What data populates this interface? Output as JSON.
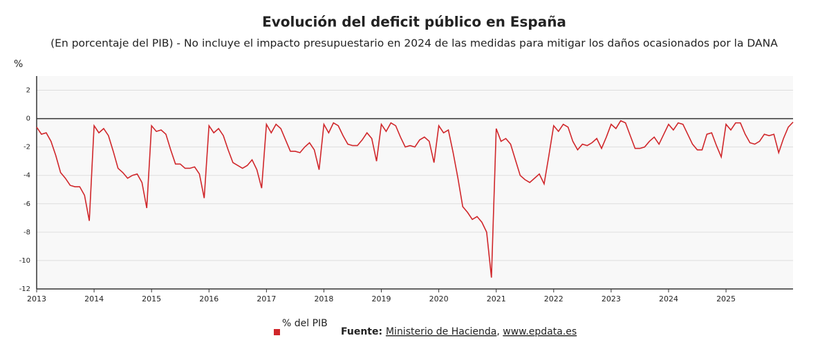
{
  "chart_data": {
    "type": "line",
    "title": "Evolución del deficit público en España",
    "subtitle": "(En porcentaje del PIB) - No incluye el impacto presupuestario en 2024 de las medidas para mitigar los daños ocasionados por la DANA",
    "y_label": "%",
    "source_label": "Fuente:",
    "source_name": "Ministerio de Hacienda",
    "source_site": "www.epdata.es",
    "categories": [
      "2013",
      null,
      null,
      null,
      null,
      null,
      null,
      null,
      null,
      null,
      null,
      null,
      "2014",
      null,
      null,
      null,
      null,
      null,
      null,
      null,
      null,
      null,
      null,
      null,
      "2015",
      null,
      null,
      null,
      null,
      null,
      null,
      null,
      null,
      null,
      null,
      null,
      "2016",
      null,
      null,
      null,
      null,
      null,
      null,
      null,
      null,
      null,
      null,
      null,
      "2017",
      null,
      null,
      null,
      null,
      null,
      null,
      null,
      null,
      null,
      null,
      null,
      "2018",
      null,
      null,
      null,
      null,
      null,
      null,
      null,
      null,
      null,
      null,
      null,
      "2019",
      null,
      null,
      null,
      null,
      null,
      null,
      null,
      null,
      null,
      null,
      null,
      "2020",
      null,
      null,
      null,
      null,
      null,
      null,
      null,
      null,
      null,
      null,
      null,
      "2021",
      null,
      null,
      null,
      null,
      null,
      null,
      null,
      null,
      null,
      null,
      null,
      "2022",
      null,
      null,
      null,
      null,
      null,
      null,
      null,
      null,
      null,
      null,
      null,
      "2023",
      null,
      null,
      null,
      null,
      null,
      null,
      null,
      null,
      null,
      null,
      null,
      "2024",
      null,
      null,
      null,
      null,
      null,
      null,
      null,
      null,
      null,
      null,
      null,
      "2025",
      null,
      null,
      null,
      null,
      null,
      null,
      null,
      null,
      null,
      null,
      null,
      null,
      null,
      null
    ],
    "series": [
      {
        "name": "% del PIB",
        "color": "#d0262a",
        "values": [
          -0.6,
          -1.1,
          -1.0,
          -1.6,
          -2.6,
          -3.8,
          -4.2,
          -4.7,
          -4.8,
          -4.8,
          -5.4,
          -7.2,
          -0.5,
          -1.0,
          -0.7,
          -1.2,
          -2.3,
          -3.5,
          -3.8,
          -4.2,
          -4.0,
          -3.9,
          -4.5,
          -6.3,
          -0.5,
          -0.9,
          -0.8,
          -1.1,
          -2.2,
          -3.2,
          -3.2,
          -3.5,
          -3.5,
          -3.4,
          -3.9,
          -5.6,
          -0.5,
          -1.0,
          -0.7,
          -1.2,
          -2.2,
          -3.1,
          -3.3,
          -3.5,
          -3.3,
          -2.9,
          -3.6,
          -4.9,
          -0.4,
          -1.0,
          -0.4,
          -0.7,
          -1.5,
          -2.3,
          -2.3,
          -2.4,
          -2.0,
          -1.7,
          -2.2,
          -3.6,
          -0.4,
          -1.0,
          -0.3,
          -0.5,
          -1.2,
          -1.8,
          -1.9,
          -1.9,
          -1.5,
          -1.0,
          -1.4,
          -3.0,
          -0.4,
          -0.9,
          -0.3,
          -0.5,
          -1.3,
          -2.0,
          -1.9,
          -2.0,
          -1.5,
          -1.3,
          -1.6,
          -3.1,
          -0.5,
          -1.0,
          -0.8,
          -2.4,
          -4.2,
          -6.2,
          -6.6,
          -7.1,
          -6.9,
          -7.3,
          -8.0,
          -11.2,
          -0.7,
          -1.6,
          -1.4,
          -1.8,
          -2.9,
          -4.0,
          -4.3,
          -4.5,
          -4.2,
          -3.9,
          -4.6,
          -2.6,
          -0.5,
          -0.9,
          -0.4,
          -0.6,
          -1.6,
          -2.2,
          -1.8,
          -1.9,
          -1.7,
          -1.4,
          -2.1,
          -1.3,
          -0.4,
          -0.7,
          -0.15,
          -0.3,
          -1.2,
          -2.1,
          -2.1,
          -2.0,
          -1.6,
          -1.3,
          -1.8,
          -1.1,
          -0.4,
          -0.8,
          -0.3,
          -0.4,
          -1.1,
          -1.8,
          -2.2,
          -2.2,
          -1.1,
          -1.0,
          -1.9,
          -2.7,
          -0.4,
          -0.8,
          -0.3,
          -0.3,
          -1.1,
          -1.7,
          -1.8,
          -1.6,
          -1.1,
          -1.2,
          -1.1,
          -2.4,
          -1.4,
          -0.6,
          -0.25
        ]
      }
    ],
    "ylim": [
      -12,
      3
    ],
    "yticks": [
      -12,
      -10,
      -8,
      -6,
      -4,
      -2,
      0,
      2
    ],
    "grid": true
  }
}
